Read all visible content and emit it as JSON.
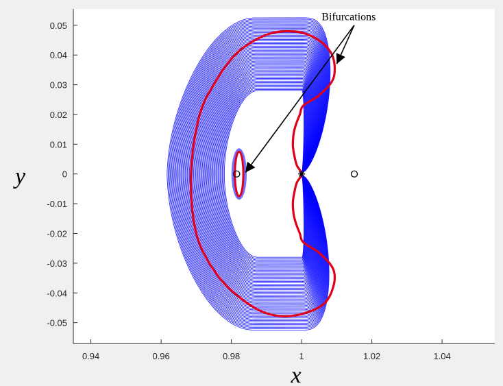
{
  "chart_data": {
    "type": "line",
    "title": "",
    "xlabel": "x",
    "ylabel": "y",
    "xlim": [
      0.935,
      1.055
    ],
    "ylim": [
      -0.057,
      0.0555
    ],
    "xticks": [
      0.94,
      0.96,
      0.98,
      1,
      1.02,
      1.04
    ],
    "xtick_labels": [
      "0.94",
      "0.96",
      "0.98",
      "1",
      "1.02",
      "1.04"
    ],
    "yticks": [
      0.05,
      0.04,
      0.03,
      0.02,
      0.01,
      0,
      -0.01,
      -0.02,
      -0.03,
      -0.04,
      -0.05
    ],
    "ytick_labels": [
      "0.05",
      "0.04",
      "0.03",
      "0.02",
      "0.01",
      "0",
      "-0.01",
      "-0.02",
      "-0.03",
      "-0.04",
      "-0.05"
    ],
    "grid": false,
    "colors": {
      "family": "#0000ff",
      "bifurcation": "#e0001a",
      "marker": "#000000"
    },
    "family_curves": {
      "count": 55,
      "inner_x_range": [
        0.9995,
        1.0
      ],
      "outer_x_max": 1.0115,
      "outer_y_max": 0.0525
    },
    "bifurcation_outer": {
      "x": [
        1.0,
        0.9986,
        0.9978,
        0.9975,
        0.9978,
        0.9985,
        0.9995,
        1.0005,
        1.005,
        1.009,
        1.009,
        1.006,
        1.001,
        0.996,
        0.991,
        0.986,
        0.981,
        0.976,
        0.971,
        0.9685,
        0.97,
        0.976,
        0.984,
        0.991,
        0.9985,
        1.006,
        1.009,
        1.009,
        1.005,
        1.0005,
        0.9995,
        0.9985,
        0.9978,
        0.9975,
        0.9978,
        0.9986
      ],
      "y": [
        0.0,
        0.003,
        0.007,
        0.01,
        0.014,
        0.017,
        0.02,
        0.023,
        0.0265,
        0.032,
        0.039,
        0.044,
        0.0472,
        0.048,
        0.0472,
        0.0445,
        0.04,
        0.032,
        0.02,
        0.0,
        -0.02,
        -0.034,
        -0.043,
        -0.0472,
        -0.0475,
        -0.044,
        -0.038,
        -0.032,
        -0.0265,
        -0.023,
        -0.02,
        -0.017,
        -0.014,
        -0.01,
        -0.007,
        -0.003
      ]
    },
    "bifurcation_inner": {
      "center": [
        0.9822,
        0.0
      ],
      "rx": 0.0012,
      "ry": 0.0075
    },
    "markers": [
      {
        "type": "circle",
        "x": 0.9815,
        "y": 0
      },
      {
        "type": "star",
        "x": 1.0,
        "y": 0
      },
      {
        "type": "circle",
        "x": 1.015,
        "y": 0
      }
    ],
    "annotation": {
      "text": "Bifurcations",
      "anchor": [
        1.0095,
        0.0535
      ],
      "arrows": [
        {
          "from": [
            1.0095,
            0.05
          ],
          "to": [
            1.01,
            0.037
          ]
        },
        {
          "from": [
            1.0095,
            0.05
          ],
          "to": [
            0.984,
            0.0005
          ]
        }
      ]
    }
  }
}
